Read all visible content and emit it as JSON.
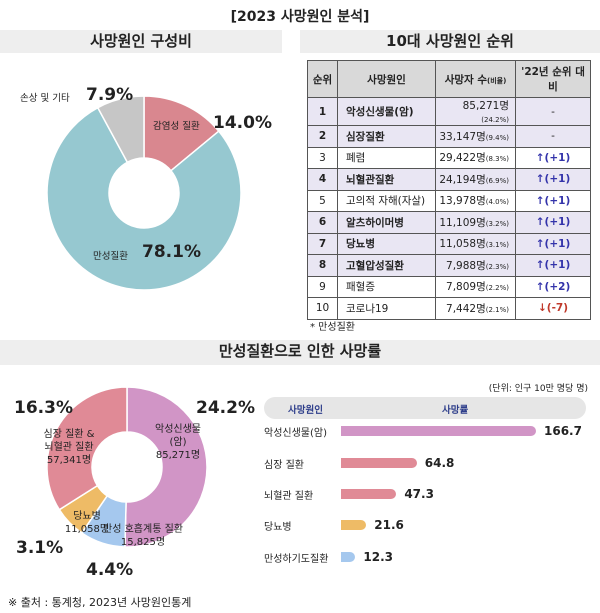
{
  "title": "[2023 사망원인 분석]",
  "left_header": "사망원인 구성비",
  "right_header": "10대 사망원인 순위",
  "middle_header": "만성질환으로 인한 사망률",
  "source": "※ 출처 : 통계청, 2023년 사망원인통계",
  "table": {
    "headers": [
      "순위",
      "사망원인",
      "사망자 수",
      "(비율)",
      "'22년 순위 대비"
    ],
    "rows": [
      {
        "rank": "1",
        "name": "악성신생물(암)",
        "count": "85,271명",
        "pct": "(24.2%)",
        "change": "-",
        "chronic": true,
        "dir": "none"
      },
      {
        "rank": "2",
        "name": "심장질환",
        "count": "33,147명",
        "pct": "(9.4%)",
        "change": "-",
        "chronic": true,
        "dir": "none"
      },
      {
        "rank": "3",
        "name": "폐렴",
        "count": "29,422명",
        "pct": "(8.3%)",
        "change": "↑(+1)",
        "chronic": false,
        "dir": "up"
      },
      {
        "rank": "4",
        "name": "뇌혈관질환",
        "count": "24,194명",
        "pct": "(6.9%)",
        "change": "↑(+1)",
        "chronic": true,
        "dir": "up"
      },
      {
        "rank": "5",
        "name": "고의적 자해(자살)",
        "count": "13,978명",
        "pct": "(4.0%)",
        "change": "↑(+1)",
        "chronic": false,
        "dir": "up"
      },
      {
        "rank": "6",
        "name": "알츠하이머병",
        "count": "11,109명",
        "pct": "(3.2%)",
        "change": "↑(+1)",
        "chronic": true,
        "dir": "up"
      },
      {
        "rank": "7",
        "name": "당뇨병",
        "count": "11,058명",
        "pct": "(3.1%)",
        "change": "↑(+1)",
        "chronic": true,
        "dir": "up"
      },
      {
        "rank": "8",
        "name": "고혈압성질환",
        "count": "7,988명",
        "pct": "(2.3%)",
        "change": "↑(+1)",
        "chronic": true,
        "dir": "up"
      },
      {
        "rank": "9",
        "name": "패혈증",
        "count": "7,809명",
        "pct": "(2.2%)",
        "change": "↑(+2)",
        "chronic": false,
        "dir": "up"
      },
      {
        "rank": "10",
        "name": "코로나19",
        "count": "7,442명",
        "pct": "(2.1%)",
        "change": "↓(-7)",
        "chronic": false,
        "dir": "down"
      }
    ],
    "footnote": "* 만성질환"
  },
  "chart_data": [
    {
      "type": "pie",
      "subtype": "donut",
      "title": "사망원인 구성비",
      "slices": [
        {
          "label": "감염성 질환",
          "value": 14.0,
          "display": "14.0%",
          "color": "#d9878f"
        },
        {
          "label": "만성질환",
          "value": 78.1,
          "display": "78.1%",
          "color": "#96c8d0"
        },
        {
          "label": "손상 및 기타",
          "value": 7.9,
          "display": "7.9%",
          "color": "#c6c6c6"
        }
      ]
    },
    {
      "type": "pie",
      "subtype": "donut",
      "slices": [
        {
          "label": "악성신생물(암)",
          "count": "85,271명",
          "value": 24.2,
          "display": "24.2%",
          "color": "#d195c6"
        },
        {
          "label": "만성 호흡계통 질환",
          "count": "15,825명",
          "value": 4.4,
          "display": "4.4%",
          "color": "#a5c8ee"
        },
        {
          "label": "당뇨병",
          "count": "11,058명",
          "value": 3.1,
          "display": "3.1%",
          "color": "#eebb66"
        },
        {
          "label": "심장 질환 & 뇌혈관 질환",
          "count": "57,341명",
          "value": 16.3,
          "display": "16.3%",
          "color": "#e08a96"
        }
      ]
    },
    {
      "type": "bar",
      "orientation": "horizontal",
      "unit": "(단위: 인구 10만 명당 명)",
      "header": [
        "사망원인",
        "사망률"
      ],
      "categories": [
        "악성신생물(암)",
        "심장 질환",
        "뇌혈관 질환",
        "당뇨병",
        "만성하기도질환"
      ],
      "values": [
        166.7,
        64.8,
        47.3,
        21.6,
        12.3
      ],
      "labels": [
        "166.7",
        "64.8",
        "47.3",
        "21.6",
        "12.3"
      ],
      "colors": [
        "#d195c6",
        "#e08a96",
        "#e08a96",
        "#eebb66",
        "#a5c8ee"
      ]
    }
  ]
}
